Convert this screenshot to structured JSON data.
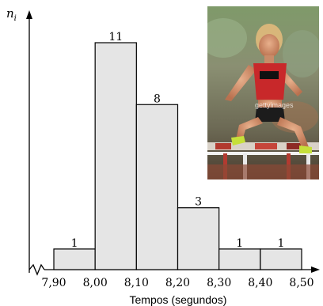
{
  "chart_data": {
    "type": "bar",
    "subtype": "histogram",
    "ylabel": "n",
    "ylabel_subscript": "i",
    "xlabel": "Tempos (segundos)",
    "bin_edges": [
      "7,90",
      "8,00",
      "8,10",
      "8,20",
      "8,30",
      "8,40",
      "8,50"
    ],
    "bin_edges_num": [
      7.9,
      8.0,
      8.1,
      8.2,
      8.3,
      8.4,
      8.5
    ],
    "values": [
      1,
      11,
      8,
      3,
      1,
      1
    ],
    "value_labels": [
      "1",
      "11",
      "8",
      "3",
      "1",
      "1"
    ],
    "xlim": [
      7.82,
      8.55
    ],
    "ylim": [
      0,
      12.5
    ],
    "axis_break": true,
    "bar_fill": "#e5e5e5",
    "bar_stroke": "#000000"
  },
  "photo": {
    "watermark": "gettyimages"
  }
}
